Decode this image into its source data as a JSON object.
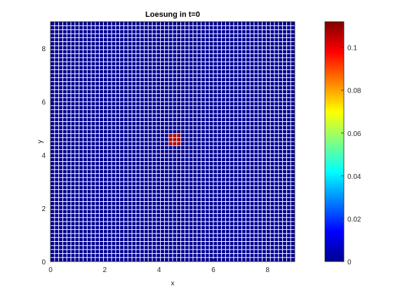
{
  "chart_data": {
    "type": "heatmap",
    "title": "Loesung in t=0",
    "xlabel": "x",
    "ylabel": "y",
    "xlim": [
      0,
      9
    ],
    "ylim": [
      0,
      9
    ],
    "xticks": [
      "0",
      "2",
      "4",
      "6",
      "8"
    ],
    "yticks": [
      "0",
      "2",
      "4",
      "6",
      "8"
    ],
    "grid_cells": [
      60,
      60
    ],
    "grid_lines": "white",
    "background_value": 0,
    "hot_region": {
      "x_range": [
        4.35,
        4.8
      ],
      "y_range": [
        4.35,
        4.8
      ],
      "value": 0.11
    },
    "colorbar": {
      "min": 0,
      "max": 0.112,
      "ticks": [
        "0",
        "0.02",
        "0.04",
        "0.06",
        "0.08",
        "0.1"
      ],
      "colormap": "jet",
      "placement": "right"
    }
  }
}
